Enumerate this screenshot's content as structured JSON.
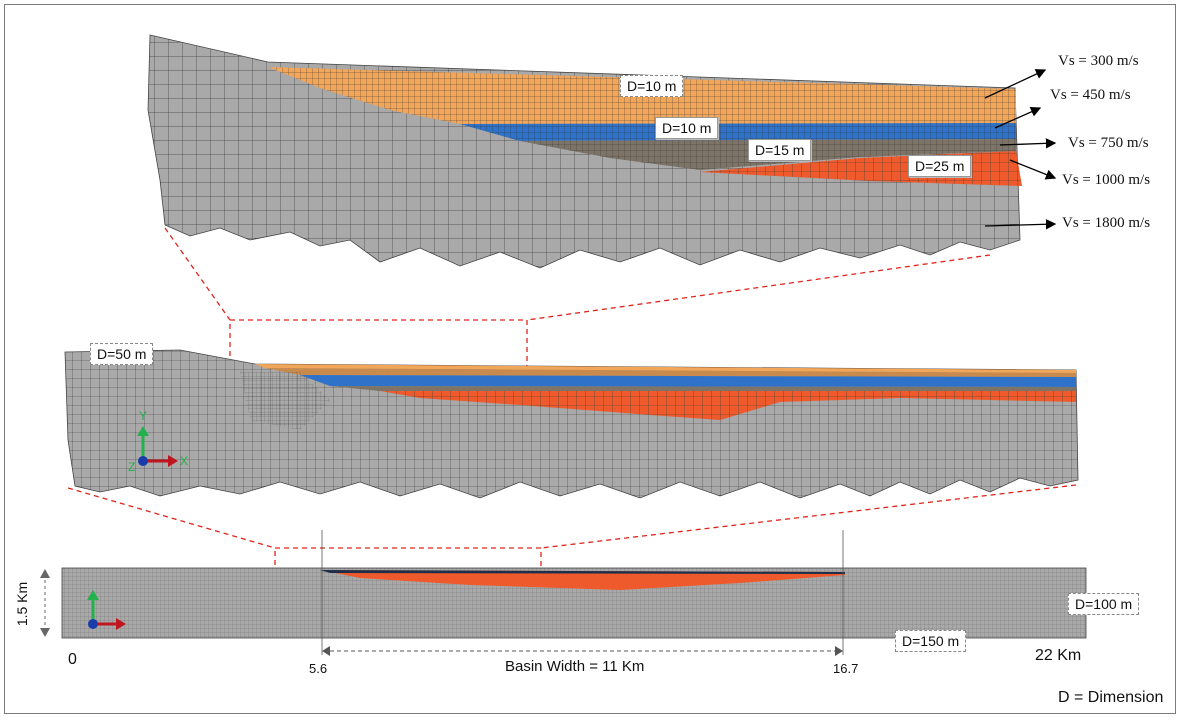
{
  "layers": [
    {
      "dimension": "D=10 m",
      "vs": "Vs = 300 m/s",
      "color": "#f2a65a"
    },
    {
      "dimension": "D=10 m",
      "vs": "Vs = 450 m/s",
      "color": "#2e73c9"
    },
    {
      "dimension": "D=15 m",
      "vs": "Vs = 750 m/s",
      "color": "#7d7467"
    },
    {
      "dimension": "D=25 m",
      "vs": "Vs = 1000 m/s",
      "color": "#ee5a2b"
    },
    {
      "vs": "Vs = 1800 m/s",
      "color": "#a9a9a9"
    }
  ],
  "middle": {
    "dimension": "D=50 m",
    "axes": {
      "y": "Y",
      "x": "X",
      "z": "Z"
    }
  },
  "bottom": {
    "height_label": "1.5 Km",
    "dimension_upper": "D=100 m",
    "dimension_lower": "D=150 m",
    "ticks": [
      "0",
      "5.6",
      "16.7",
      "22 Km"
    ],
    "basin_width": "Basin Width = 11 Km"
  },
  "legend": "D = Dimension",
  "colors": {
    "mesh_line": "#3a3a3a",
    "zoom_line": "#e0241b",
    "bedrock": "#a9a9a9"
  }
}
